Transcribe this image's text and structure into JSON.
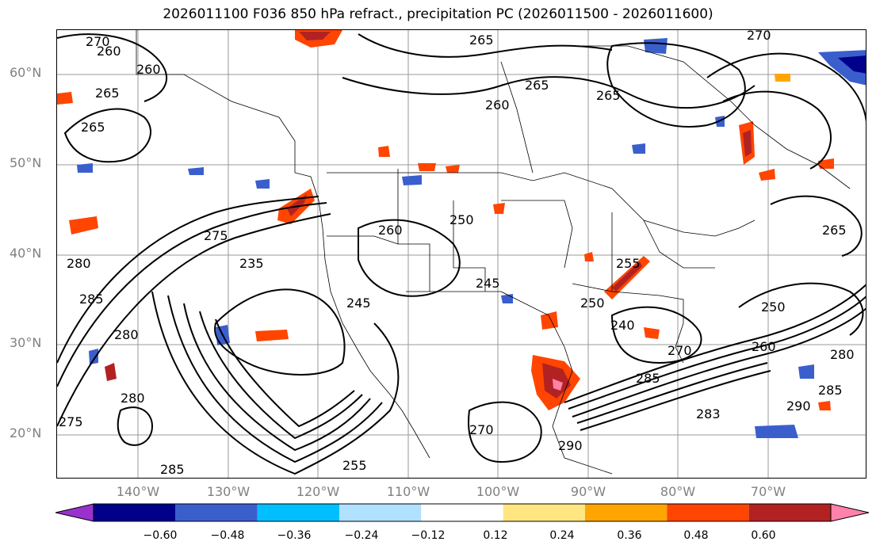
{
  "title": "2026011100 F036 850 hPa refract., precipitation PC (2026011500 - 2026011600)",
  "lat_labels": [
    "60°N",
    "50°N",
    "40°N",
    "30°N",
    "20°N"
  ],
  "lon_labels": [
    "140°W",
    "130°W",
    "120°W",
    "110°W",
    "100°W",
    "90°W",
    "80°W",
    "70°W"
  ],
  "contour_labels": [
    "270",
    "260",
    "265",
    "260",
    "265",
    "265",
    "265",
    "260",
    "270",
    "265",
    "265",
    "275",
    "260",
    "250",
    "255",
    "235",
    "280",
    "285",
    "280",
    "245",
    "245",
    "240",
    "250",
    "260",
    "270",
    "250",
    "280",
    "285",
    "280",
    "285",
    "275",
    "270",
    "290",
    "255",
    "283",
    "285",
    "290"
  ],
  "colorbar": {
    "ticks": [
      "−0.60",
      "−0.48",
      "−0.36",
      "−0.24",
      "−0.12",
      "0.12",
      "0.24",
      "0.36",
      "0.48",
      "0.60"
    ],
    "colors": [
      "#9932cc",
      "#00008b",
      "#3a5fcd",
      "#00bfff",
      "#b0e2ff",
      "#ffffff",
      "#ffe680",
      "#ffa500",
      "#ff4500",
      "#b22222",
      "#ff82ab"
    ]
  }
}
